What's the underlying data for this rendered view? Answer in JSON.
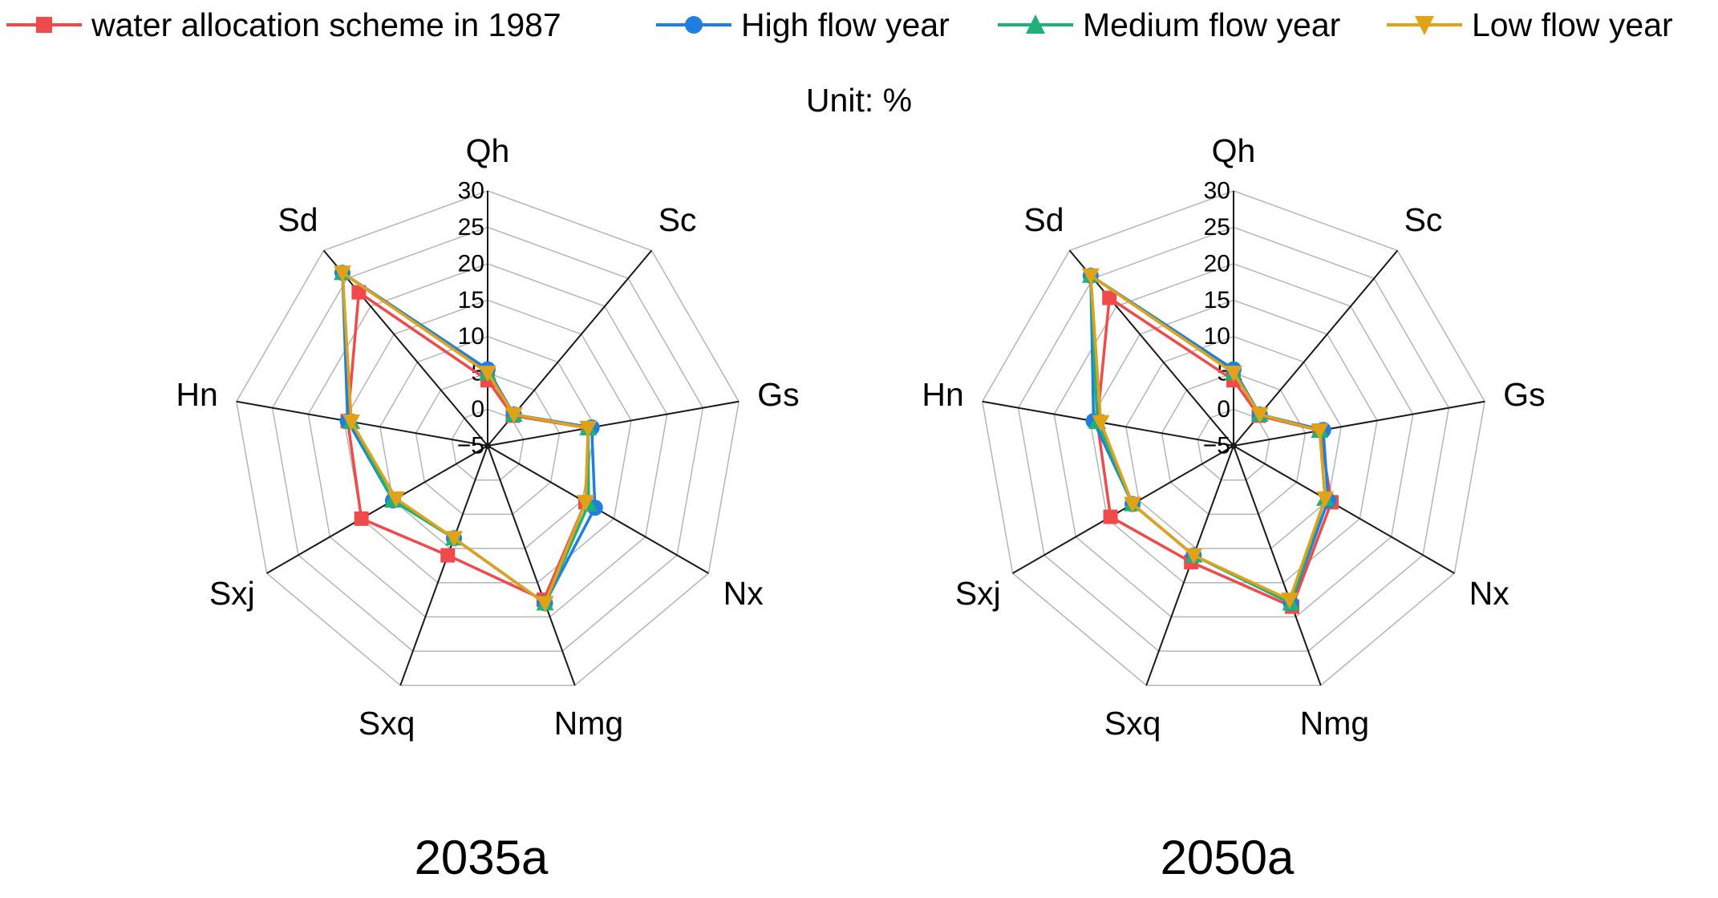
{
  "legend": [
    {
      "name": "water allocation scheme in 1987",
      "color": "#f04a4a",
      "marker": "square"
    },
    {
      "name": "High flow year",
      "color": "#1f7fe0",
      "marker": "circle"
    },
    {
      "name": "Medium flow year",
      "color": "#20b07a",
      "marker": "triangle-up"
    },
    {
      "name": "Low flow year",
      "color": "#e0a218",
      "marker": "triangle-down"
    }
  ],
  "unit": "Unit: %",
  "chart_data": [
    {
      "type": "radar",
      "title": "2035a",
      "categories": [
        "Qh",
        "Sc",
        "Gs",
        "Nx",
        "Nmg",
        "Sxq",
        "Sxj",
        "Hn",
        "Sd"
      ],
      "ticks": [
        "30",
        "25",
        "20",
        "15",
        "10",
        "5",
        "0",
        "−5"
      ],
      "rlim": [
        -5,
        30
      ],
      "series": [
        {
          "name": "water allocation scheme in 1987",
          "values": [
            4.0,
            0.4,
            9.0,
            10.5,
            17.5,
            11.0,
            15.0,
            14.5,
            22.5
          ]
        },
        {
          "name": "High flow year",
          "values": [
            5.5,
            0.6,
            9.5,
            12.0,
            18.0,
            8.5,
            10.0,
            14.5,
            26.0
          ]
        },
        {
          "name": "Medium flow year",
          "values": [
            5.0,
            0.6,
            9.0,
            11.0,
            18.0,
            8.5,
            10.0,
            14.0,
            26.0
          ]
        },
        {
          "name": "Low flow year",
          "values": [
            5.0,
            0.6,
            9.0,
            10.5,
            18.0,
            8.5,
            9.5,
            14.0,
            26.0
          ]
        }
      ]
    },
    {
      "type": "radar",
      "title": "2050a",
      "categories": [
        "Qh",
        "Sc",
        "Gs",
        "Nx",
        "Nmg",
        "Sxq",
        "Sxj",
        "Hn",
        "Sd"
      ],
      "ticks": [
        "30",
        "25",
        "20",
        "15",
        "10",
        "5",
        "0",
        "−5"
      ],
      "rlim": [
        -5,
        30
      ],
      "series": [
        {
          "name": "water allocation scheme in 1987",
          "values": [
            4.0,
            0.4,
            7.0,
            10.5,
            18.5,
            12.0,
            14.5,
            14.0,
            21.5
          ]
        },
        {
          "name": "High flow year",
          "values": [
            5.5,
            0.6,
            7.5,
            10.0,
            18.0,
            11.0,
            11.0,
            14.5,
            25.5
          ]
        },
        {
          "name": "Medium flow year",
          "values": [
            5.0,
            0.6,
            7.0,
            9.5,
            18.0,
            11.0,
            11.0,
            14.0,
            25.5
          ]
        },
        {
          "name": "Low flow year",
          "values": [
            5.0,
            0.6,
            7.0,
            9.5,
            17.5,
            11.0,
            11.0,
            13.5,
            25.5
          ]
        }
      ]
    }
  ]
}
